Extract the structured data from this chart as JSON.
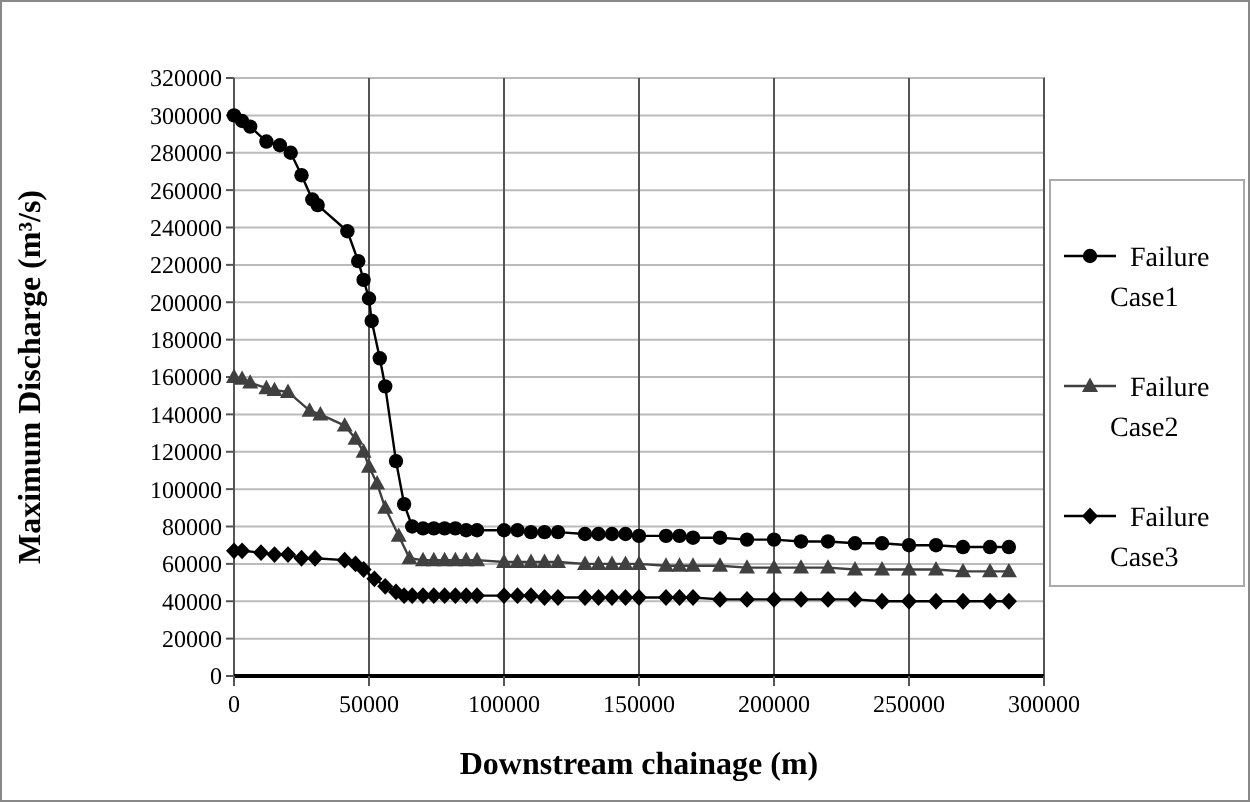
{
  "chart_data": {
    "type": "line",
    "xlabel": "Downstream chainage (m)",
    "ylabel": "Maximum Discharge (m³/s)",
    "xlim": [
      0,
      300000
    ],
    "xticks": [
      0,
      50000,
      100000,
      150000,
      200000,
      250000,
      300000
    ],
    "ylim": [
      0,
      320000
    ],
    "yticks": [
      0,
      20000,
      40000,
      60000,
      80000,
      100000,
      120000,
      140000,
      160000,
      180000,
      200000,
      220000,
      240000,
      260000,
      280000,
      300000,
      320000
    ],
    "grid": true,
    "legend": "right",
    "line_style": "solid",
    "series": [
      {
        "name": "Failure Case1",
        "color": "#000000",
        "marker": "circle",
        "x": [
          0,
          3000,
          6000,
          12000,
          17000,
          21000,
          25000,
          29000,
          31000,
          42000,
          46000,
          48000,
          50000,
          51000,
          54000,
          56000,
          60000,
          63000,
          66000,
          70000,
          74000,
          78000,
          82000,
          86000,
          90000,
          100000,
          105000,
          110000,
          115000,
          120000,
          130000,
          135000,
          140000,
          145000,
          150000,
          160000,
          165000,
          170000,
          180000,
          190000,
          200000,
          210000,
          220000,
          230000,
          240000,
          250000,
          260000,
          270000,
          280000,
          287000
        ],
        "values": [
          300000,
          297000,
          294000,
          286000,
          284000,
          280000,
          268000,
          255000,
          252000,
          238000,
          222000,
          212000,
          202000,
          190000,
          170000,
          155000,
          115000,
          92000,
          80000,
          79000,
          79000,
          79000,
          79000,
          78000,
          78000,
          78000,
          78000,
          77000,
          77000,
          77000,
          76000,
          76000,
          76000,
          76000,
          75000,
          75000,
          75000,
          74000,
          74000,
          73000,
          73000,
          72000,
          72000,
          71000,
          71000,
          70000,
          70000,
          69000,
          69000,
          69000
        ]
      },
      {
        "name": "Failure Case2",
        "color": "#404040",
        "marker": "triangle",
        "x": [
          0,
          3000,
          6000,
          12000,
          15000,
          20000,
          28000,
          32000,
          41000,
          45000,
          48000,
          50000,
          53000,
          56000,
          61000,
          65000,
          70000,
          74000,
          78000,
          82000,
          86000,
          90000,
          100000,
          105000,
          110000,
          115000,
          120000,
          130000,
          135000,
          140000,
          145000,
          150000,
          160000,
          165000,
          170000,
          180000,
          190000,
          200000,
          210000,
          220000,
          230000,
          240000,
          250000,
          260000,
          270000,
          280000,
          287000
        ],
        "values": [
          160000,
          159000,
          157000,
          154000,
          153000,
          152000,
          142000,
          140000,
          134000,
          127000,
          120000,
          112000,
          103000,
          90000,
          75000,
          63000,
          62000,
          62000,
          62000,
          62000,
          62000,
          62000,
          61000,
          61000,
          61000,
          61000,
          61000,
          60000,
          60000,
          60000,
          60000,
          60000,
          59000,
          59000,
          59000,
          59000,
          58000,
          58000,
          58000,
          58000,
          57000,
          57000,
          57000,
          57000,
          56000,
          56000,
          56000
        ]
      },
      {
        "name": "Failure Case3",
        "color": "#000000",
        "marker": "diamond",
        "x": [
          0,
          3000,
          10000,
          15000,
          20000,
          25000,
          30000,
          41000,
          45000,
          48000,
          52000,
          56000,
          60000,
          63000,
          66000,
          70000,
          74000,
          78000,
          82000,
          86000,
          90000,
          100000,
          105000,
          110000,
          115000,
          120000,
          130000,
          135000,
          140000,
          145000,
          150000,
          160000,
          165000,
          170000,
          180000,
          190000,
          200000,
          210000,
          220000,
          230000,
          240000,
          250000,
          260000,
          270000,
          280000,
          287000
        ],
        "values": [
          67000,
          67000,
          66000,
          65000,
          65000,
          63000,
          63000,
          62000,
          60000,
          57000,
          52000,
          48000,
          45000,
          43000,
          43000,
          43000,
          43000,
          43000,
          43000,
          43000,
          43000,
          43000,
          43000,
          43000,
          42000,
          42000,
          42000,
          42000,
          42000,
          42000,
          42000,
          42000,
          42000,
          42000,
          41000,
          41000,
          41000,
          41000,
          41000,
          41000,
          40000,
          40000,
          40000,
          40000,
          40000,
          40000
        ]
      }
    ]
  }
}
